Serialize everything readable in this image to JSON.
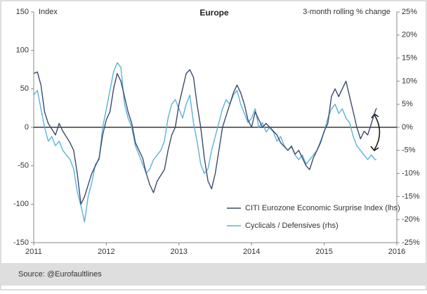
{
  "chart_data": {
    "type": "line",
    "title": "Europe",
    "ylabel": "Index",
    "y2label": "3-month rolling % change",
    "source": "Source: @Eurofaultlines",
    "xlim": [
      2011,
      2016
    ],
    "xticks": [
      2011,
      2012,
      2013,
      2014,
      2015,
      2016
    ],
    "ylim": [
      -150,
      150
    ],
    "yticks": [
      150,
      100,
      50,
      0,
      -50,
      -100,
      -150
    ],
    "y2lim": [
      -25,
      25
    ],
    "y2ticks": [
      {
        "value": 25,
        "label": "25%"
      },
      {
        "value": 20,
        "label": "20%"
      },
      {
        "value": 15,
        "label": "15%"
      },
      {
        "value": 10,
        "label": "10%"
      },
      {
        "value": 5,
        "label": "5%"
      },
      {
        "value": 0,
        "label": "0%"
      },
      {
        "value": -5,
        "label": "-5%"
      },
      {
        "value": -10,
        "label": "-10%"
      },
      {
        "value": -15,
        "label": "-15%"
      },
      {
        "value": -20,
        "label": "-20%"
      },
      {
        "value": -25,
        "label": "-25%"
      }
    ],
    "grid": false,
    "series": [
      {
        "name": "CITI Eurozone Economic Surprise Index (lhs)",
        "color": "#3b4a6e",
        "axis": "y",
        "x": [
          2011.0,
          2011.05,
          2011.1,
          2011.15,
          2011.2,
          2011.3,
          2011.35,
          2011.4,
          2011.5,
          2011.55,
          2011.6,
          2011.65,
          2011.7,
          2011.75,
          2011.8,
          2011.9,
          2011.95,
          2012.0,
          2012.05,
          2012.1,
          2012.15,
          2012.2,
          2012.25,
          2012.3,
          2012.35,
          2012.4,
          2012.5,
          2012.55,
          2012.6,
          2012.65,
          2012.7,
          2012.8,
          2012.85,
          2012.9,
          2012.95,
          2013.0,
          2013.05,
          2013.1,
          2013.15,
          2013.2,
          2013.25,
          2013.3,
          2013.35,
          2013.4,
          2013.45,
          2013.5,
          2013.55,
          2013.6,
          2013.65,
          2013.7,
          2013.75,
          2013.8,
          2013.85,
          2013.9,
          2013.95,
          2014.0,
          2014.05,
          2014.1,
          2014.15,
          2014.2,
          2014.25,
          2014.3,
          2014.35,
          2014.4,
          2014.5,
          2014.55,
          2014.6,
          2014.65,
          2014.7,
          2014.75,
          2014.8,
          2014.85,
          2014.9,
          2014.95,
          2015.0,
          2015.05,
          2015.1,
          2015.15,
          2015.2,
          2015.25,
          2015.3,
          2015.35,
          2015.4,
          2015.45,
          2015.5,
          2015.55,
          2015.6,
          2015.65,
          2015.7,
          2015.72
        ],
        "values": [
          70,
          72,
          55,
          20,
          5,
          -10,
          5,
          -5,
          -20,
          -30,
          -60,
          -100,
          -90,
          -75,
          -60,
          -40,
          -10,
          10,
          20,
          50,
          70,
          60,
          40,
          20,
          5,
          -20,
          -40,
          -60,
          -75,
          -85,
          -70,
          -55,
          -30,
          -10,
          0,
          30,
          50,
          70,
          75,
          65,
          30,
          0,
          -40,
          -70,
          -80,
          -60,
          -30,
          0,
          15,
          30,
          45,
          55,
          45,
          30,
          10,
          0,
          20,
          10,
          0,
          5,
          0,
          -5,
          -10,
          -20,
          -30,
          -25,
          -35,
          -30,
          -40,
          -50,
          -55,
          -40,
          -30,
          -20,
          -5,
          5,
          40,
          50,
          40,
          50,
          60,
          40,
          20,
          0,
          -15,
          -5,
          -10,
          5,
          20,
          25
        ]
      },
      {
        "name": "Cyclicals / Defensives (rhs)",
        "color": "#5bb3d8",
        "axis": "y2",
        "x": [
          2011.0,
          2011.05,
          2011.1,
          2011.15,
          2011.2,
          2011.25,
          2011.3,
          2011.35,
          2011.4,
          2011.5,
          2011.55,
          2011.6,
          2011.65,
          2011.7,
          2011.75,
          2011.8,
          2011.85,
          2011.9,
          2011.95,
          2012.0,
          2012.05,
          2012.1,
          2012.15,
          2012.2,
          2012.25,
          2012.3,
          2012.35,
          2012.4,
          2012.5,
          2012.55,
          2012.6,
          2012.65,
          2012.7,
          2012.75,
          2012.8,
          2012.85,
          2012.9,
          2012.95,
          2013.0,
          2013.05,
          2013.1,
          2013.15,
          2013.2,
          2013.25,
          2013.3,
          2013.35,
          2013.4,
          2013.45,
          2013.5,
          2013.55,
          2013.6,
          2013.65,
          2013.7,
          2013.75,
          2013.8,
          2013.85,
          2013.9,
          2013.95,
          2014.0,
          2014.05,
          2014.1,
          2014.15,
          2014.2,
          2014.25,
          2014.3,
          2014.35,
          2014.4,
          2014.45,
          2014.5,
          2014.55,
          2014.6,
          2014.65,
          2014.7,
          2014.75,
          2014.8,
          2014.85,
          2014.9,
          2014.95,
          2015.0,
          2015.05,
          2015.1,
          2015.15,
          2015.2,
          2015.25,
          2015.3,
          2015.35,
          2015.4,
          2015.45,
          2015.5,
          2015.55,
          2015.6,
          2015.65,
          2015.7,
          2015.72
        ],
        "values": [
          7,
          8,
          4,
          0,
          -3,
          -2,
          -4,
          -3,
          -5,
          -7,
          -9,
          -14,
          -17,
          -20.5,
          -15,
          -12,
          -8,
          -7,
          0,
          4,
          8,
          12,
          14,
          13,
          5,
          2,
          0,
          -4,
          -8,
          -10,
          -9,
          -7,
          -6,
          -5,
          -3,
          2,
          5,
          6,
          4,
          2,
          5,
          7,
          1,
          -3,
          -8,
          -10,
          -9,
          -5,
          -2,
          1,
          4,
          6,
          5,
          7,
          8,
          5,
          3,
          1,
          2,
          4,
          0,
          1,
          -1,
          0,
          -1,
          -3,
          -2,
          -4,
          -5,
          -4,
          -6,
          -7,
          -6,
          -8,
          -7,
          -6,
          -5,
          -3,
          -1,
          2,
          4,
          5,
          3,
          4,
          2,
          1,
          -2,
          -4,
          -5,
          -6,
          -7,
          -6,
          -7,
          -7
        ]
      }
    ]
  }
}
